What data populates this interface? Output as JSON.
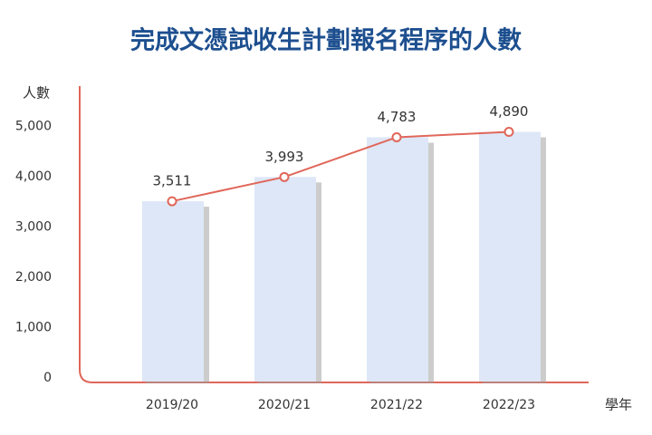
{
  "chart_data": {
    "type": "combo",
    "title": "完成文憑試收生計劃報名程序的人數",
    "y_label": "人數",
    "x_label": "學年",
    "categories": [
      "2019/20",
      "2020/21",
      "2021/22",
      "2022/23"
    ],
    "values": [
      3511,
      3993,
      4783,
      4890
    ],
    "value_labels": [
      "3,511",
      "3,993",
      "4,783",
      "4,890"
    ],
    "bar_color": "#dde7f7",
    "line_color": "#e0675a",
    "title_color": "#1d4f8f",
    "ylim": [
      0,
      5800
    ],
    "yticks": [
      0,
      {
        "value": 1000,
        "label": "1,000"
      },
      {
        "value": 2000,
        "label": "2,000"
      },
      {
        "value": 3000,
        "label": "3,000"
      },
      {
        "value": 4000,
        "label": "4,000"
      },
      {
        "value": 5000,
        "label": "5,000"
      }
    ]
  }
}
